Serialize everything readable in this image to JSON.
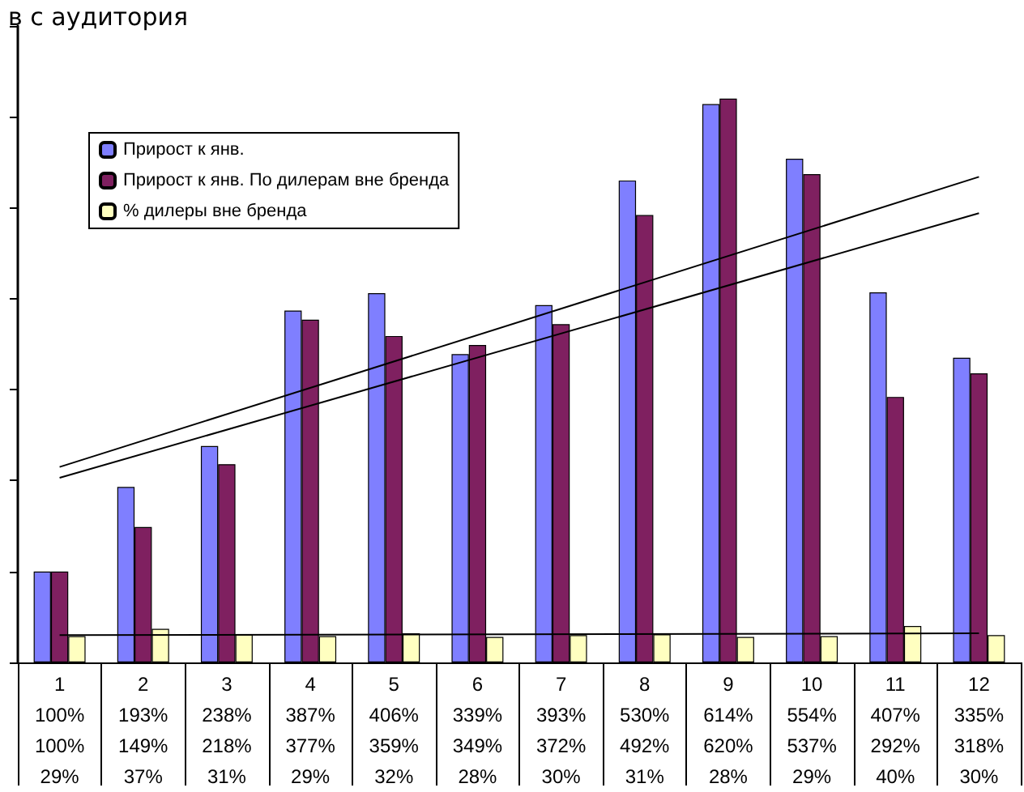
{
  "chart_data": {
    "type": "bar",
    "title": "в с аудитория",
    "categories": [
      "1",
      "2",
      "3",
      "4",
      "5",
      "6",
      "7",
      "8",
      "9",
      "10",
      "11",
      "12"
    ],
    "series": [
      {
        "name": "Прирост к янв.",
        "color": "#7f7fff",
        "values": [
          100,
          193,
          238,
          387,
          406,
          339,
          393,
          530,
          614,
          554,
          407,
          335
        ],
        "value_labels": [
          "100%",
          "193%",
          "238%",
          "387%",
          "406%",
          "339%",
          "393%",
          "530%",
          "614%",
          "554%",
          "407%",
          "335%"
        ]
      },
      {
        "name": "Прирост к янв. По дилерам вне бренда",
        "color": "#7f2060",
        "values": [
          100,
          149,
          218,
          377,
          359,
          349,
          372,
          492,
          620,
          537,
          292,
          318
        ],
        "value_labels": [
          "100%",
          "149%",
          "218%",
          "377%",
          "359%",
          "349%",
          "372%",
          "492%",
          "620%",
          "537%",
          "292%",
          "318%"
        ]
      },
      {
        "name": "% дилеры вне бренда",
        "color": "#ffffc0",
        "values": [
          29,
          37,
          31,
          29,
          32,
          28,
          30,
          31,
          28,
          29,
          40,
          30
        ],
        "value_labels": [
          "29%",
          "37%",
          "31%",
          "29%",
          "32%",
          "28%",
          "30%",
          "31%",
          "28%",
          "29%",
          "40%",
          "30%"
        ]
      },
      {
        "type": "line",
        "color": "#000000",
        "x": [
          "1",
          "12"
        ],
        "values": [
          215,
          534
        ]
      },
      {
        "type": "line",
        "color": "#000000",
        "x": [
          "1",
          "12"
        ],
        "values": [
          203,
          494
        ]
      },
      {
        "type": "line",
        "color": "#000000",
        "x": [
          "1",
          "12"
        ],
        "values": [
          30,
          32
        ]
      }
    ],
    "ylim": [
      0,
      700
    ],
    "yticks": [
      {
        "value": 0,
        "label": null
      },
      {
        "value": 100,
        "label": null
      },
      {
        "value": 200,
        "label": null
      },
      {
        "value": 300,
        "label": null
      },
      {
        "value": 400,
        "label": null
      },
      {
        "value": 500,
        "label": null
      },
      {
        "value": 600,
        "label": null
      },
      {
        "value": 700,
        "label": null
      }
    ],
    "legend": "top left",
    "grid": false
  }
}
